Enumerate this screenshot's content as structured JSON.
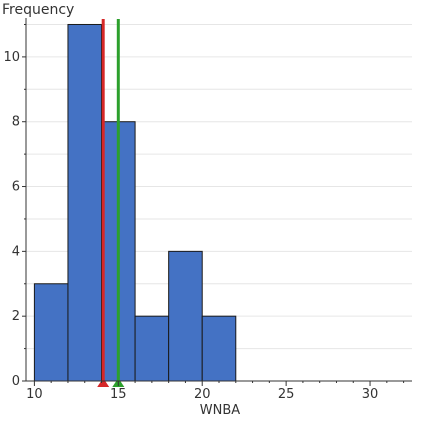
{
  "chart_data": {
    "type": "bar",
    "subtype": "histogram",
    "ylabel": "Frequency",
    "xlabel": "WNBA",
    "bins": [
      {
        "x0": 10,
        "x1": 12,
        "count": 3
      },
      {
        "x0": 12,
        "x1": 14,
        "count": 11
      },
      {
        "x0": 14,
        "x1": 16,
        "count": 8
      },
      {
        "x0": 16,
        "x1": 18,
        "count": 2
      },
      {
        "x0": 18,
        "x1": 20,
        "count": 4
      },
      {
        "x0": 20,
        "x1": 22,
        "count": 2
      }
    ],
    "xlim": [
      9.5,
      32.5
    ],
    "ylim": [
      0,
      11.2
    ],
    "xticks": [
      10,
      15,
      20,
      25,
      30
    ],
    "yticks": [
      0,
      2,
      4,
      6,
      8,
      10
    ],
    "grid": true,
    "markers": [
      {
        "x": 14.1,
        "color": "#d62728",
        "marker": "triangle"
      },
      {
        "x": 15.0,
        "color": "#2ca02c",
        "marker": "triangle"
      }
    ],
    "colors": {
      "bar_fill": "#4472c4",
      "bar_stroke": "#1a1a1a",
      "grid": "#e6e6e6",
      "axis": "#333333"
    }
  }
}
